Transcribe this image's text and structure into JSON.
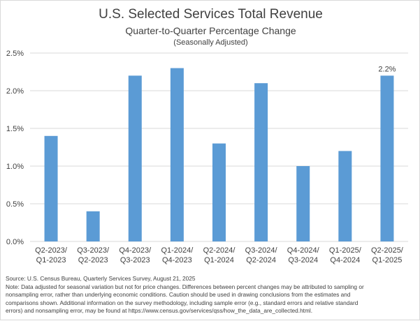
{
  "title": "U.S. Selected Services Total Revenue",
  "subtitle": "Quarter-to-Quarter  Percentage Change",
  "subsubtitle": "(Seasonally Adjusted)",
  "source": "Source:  U.S. Census Bureau, Quarterly Services Survey, August 21, 2025",
  "note_lines": [
    "Note:  Data adjusted for seasonal variation but not for price changes. Differences between percent changes may be attributed  to sampling or",
    "nonsampling  error, rather than underlying economic conditions.  Caution should be used in drawing conclusions  from the estimates and",
    "comparisons shown.  Additional information on the survey methodology, including sample error (e.g., standard errors and relative standard",
    "errors) and nonsampling  error, may be found at https://www.census.gov/services/qss/how_the_data_are_collected.html."
  ],
  "colors": {
    "bar": "#5b9bd5",
    "grid": "#d9d9d9",
    "text": "#404040"
  },
  "chart_data": {
    "type": "bar",
    "title": "U.S. Selected Services Total Revenue",
    "subtitle": "Quarter-to-Quarter  Percentage Change",
    "categories": [
      [
        "Q2-2023/",
        "Q1-2023"
      ],
      [
        "Q3-2023/",
        "Q2-2023"
      ],
      [
        "Q4-2023/",
        "Q3-2023"
      ],
      [
        "Q1-2024/",
        "Q4-2023"
      ],
      [
        "Q2-2024/",
        "Q1-2024"
      ],
      [
        "Q3-2024/",
        "Q2-2024"
      ],
      [
        "Q4-2024/",
        "Q3-2024"
      ],
      [
        "Q1-2025/",
        "Q4-2024"
      ],
      [
        "Q2-2025/",
        "Q1-2025"
      ]
    ],
    "values": [
      1.4,
      0.4,
      2.2,
      2.3,
      1.3,
      2.1,
      1.0,
      1.2,
      2.2
    ],
    "data_labels": [
      null,
      null,
      null,
      null,
      null,
      null,
      null,
      null,
      "2.2%"
    ],
    "yticks": [
      "0.0%",
      "0.5%",
      "1.0%",
      "1.5%",
      "2.0%",
      "2.5%"
    ],
    "ylim": [
      0,
      2.5
    ],
    "grid": true,
    "xlabel": "",
    "ylabel": ""
  }
}
